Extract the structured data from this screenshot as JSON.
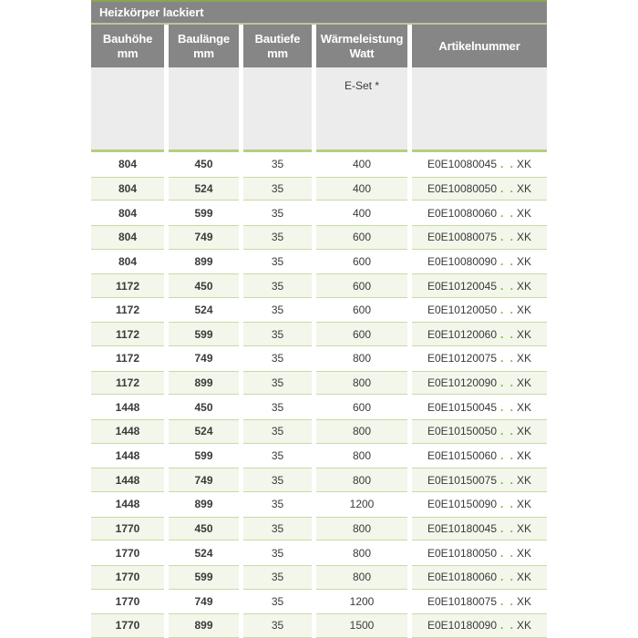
{
  "table": {
    "title": "Heizkörper lackiert",
    "columns": [
      {
        "line1": "Bauhöhe",
        "line2": "mm"
      },
      {
        "line1": "Baulänge",
        "line2": "mm"
      },
      {
        "line1": "Bautiefe",
        "line2": "mm"
      },
      {
        "line1": "Wärmeleistung",
        "line2": "Watt"
      },
      {
        "line1": "Artikelnummer",
        "line2": ""
      }
    ],
    "subheader": {
      "eset_label": "E-Set *"
    },
    "artikel_dots": ". .",
    "artikel_suffix": "XK",
    "rows": [
      {
        "bauhoehe": "804",
        "baulaenge": "450",
        "bautiefe": "35",
        "watt": "400",
        "artikelnummer": "E0E10080045"
      },
      {
        "bauhoehe": "804",
        "baulaenge": "524",
        "bautiefe": "35",
        "watt": "400",
        "artikelnummer": "E0E10080050"
      },
      {
        "bauhoehe": "804",
        "baulaenge": "599",
        "bautiefe": "35",
        "watt": "400",
        "artikelnummer": "E0E10080060"
      },
      {
        "bauhoehe": "804",
        "baulaenge": "749",
        "bautiefe": "35",
        "watt": "600",
        "artikelnummer": "E0E10080075"
      },
      {
        "bauhoehe": "804",
        "baulaenge": "899",
        "bautiefe": "35",
        "watt": "600",
        "artikelnummer": "E0E10080090"
      },
      {
        "bauhoehe": "1172",
        "baulaenge": "450",
        "bautiefe": "35",
        "watt": "600",
        "artikelnummer": "E0E10120045"
      },
      {
        "bauhoehe": "1172",
        "baulaenge": "524",
        "bautiefe": "35",
        "watt": "600",
        "artikelnummer": "E0E10120050"
      },
      {
        "bauhoehe": "1172",
        "baulaenge": "599",
        "bautiefe": "35",
        "watt": "600",
        "artikelnummer": "E0E10120060"
      },
      {
        "bauhoehe": "1172",
        "baulaenge": "749",
        "bautiefe": "35",
        "watt": "800",
        "artikelnummer": "E0E10120075"
      },
      {
        "bauhoehe": "1172",
        "baulaenge": "899",
        "bautiefe": "35",
        "watt": "800",
        "artikelnummer": "E0E10120090"
      },
      {
        "bauhoehe": "1448",
        "baulaenge": "450",
        "bautiefe": "35",
        "watt": "600",
        "artikelnummer": "E0E10150045"
      },
      {
        "bauhoehe": "1448",
        "baulaenge": "524",
        "bautiefe": "35",
        "watt": "800",
        "artikelnummer": "E0E10150050"
      },
      {
        "bauhoehe": "1448",
        "baulaenge": "599",
        "bautiefe": "35",
        "watt": "800",
        "artikelnummer": "E0E10150060"
      },
      {
        "bauhoehe": "1448",
        "baulaenge": "749",
        "bautiefe": "35",
        "watt": "800",
        "artikelnummer": "E0E10150075"
      },
      {
        "bauhoehe": "1448",
        "baulaenge": "899",
        "bautiefe": "35",
        "watt": "1200",
        "artikelnummer": "E0E10150090"
      },
      {
        "bauhoehe": "1770",
        "baulaenge": "450",
        "bautiefe": "35",
        "watt": "800",
        "artikelnummer": "E0E10180045"
      },
      {
        "bauhoehe": "1770",
        "baulaenge": "524",
        "bautiefe": "35",
        "watt": "800",
        "artikelnummer": "E0E10180050"
      },
      {
        "bauhoehe": "1770",
        "baulaenge": "599",
        "bautiefe": "35",
        "watt": "800",
        "artikelnummer": "E0E10180060"
      },
      {
        "bauhoehe": "1770",
        "baulaenge": "749",
        "bautiefe": "35",
        "watt": "1200",
        "artikelnummer": "E0E10180075"
      },
      {
        "bauhoehe": "1770",
        "baulaenge": "899",
        "bautiefe": "35",
        "watt": "1500",
        "artikelnummer": "E0E10180090"
      }
    ],
    "colors": {
      "accent_green_top": "#88a554",
      "accent_green_separator": "#b7c993",
      "accent_green_band": "#b2d080",
      "row_alt_background": "#f3f6eb",
      "row_alt_border": "#c8daa4",
      "dots_green": "#76b82a",
      "header_gray": "#868686",
      "band_gray": "#ececec",
      "text": "#3a3a39"
    }
  }
}
